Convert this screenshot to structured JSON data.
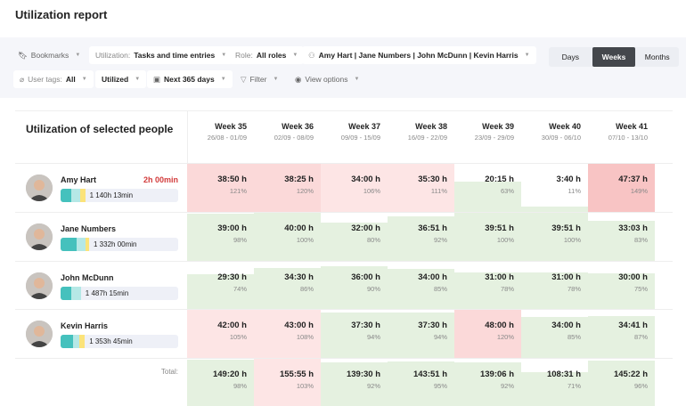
{
  "page_title": "Utilization report",
  "toolbar": {
    "bookmarks": "Bookmarks",
    "utilization_label": "Utilization:",
    "utilization_value": "Tasks and time entries",
    "role_label": "Role:",
    "role_value": "All roles",
    "people": "Amy Hart | Jane Numbers | John McDunn | Kevin Harris",
    "user_tags_label": "User tags:",
    "user_tags_value": "All",
    "utilized": "Utilized",
    "range": "Next 365 days",
    "filter": "Filter",
    "view_options": "View options",
    "periods": [
      "Days",
      "Weeks",
      "Months"
    ],
    "active_period": "Weeks"
  },
  "table": {
    "title": "Utilization of selected people",
    "weeks": [
      {
        "name": "Week 35",
        "dates": "26/08 - 01/09"
      },
      {
        "name": "Week 36",
        "dates": "02/09 - 08/09"
      },
      {
        "name": "Week 37",
        "dates": "09/09 - 15/09"
      },
      {
        "name": "Week 38",
        "dates": "16/09 - 22/09"
      },
      {
        "name": "Week 39",
        "dates": "23/09 - 29/09"
      },
      {
        "name": "Week 40",
        "dates": "30/09 - 06/10"
      },
      {
        "name": "Week 41",
        "dates": "07/10 - 13/10"
      }
    ],
    "people": [
      {
        "name": "Amy Hart",
        "overtime": "2h 00min",
        "total": "1 140h 13min",
        "bar": [
          30,
          25,
          14
        ],
        "cells": [
          {
            "h": "38:50 h",
            "p": 121
          },
          {
            "h": "38:25 h",
            "p": 120
          },
          {
            "h": "34:00 h",
            "p": 106
          },
          {
            "h": "35:30 h",
            "p": 111
          },
          {
            "h": "20:15 h",
            "p": 63
          },
          {
            "h": "3:40 h",
            "p": 11
          },
          {
            "h": "47:37 h",
            "p": 149
          }
        ]
      },
      {
        "name": "Jane Numbers",
        "overtime": "",
        "total": "1 332h 00min",
        "bar": [
          45,
          25,
          10
        ],
        "cells": [
          {
            "h": "39:00 h",
            "p": 98
          },
          {
            "h": "40:00 h",
            "p": 100
          },
          {
            "h": "32:00 h",
            "p": 80
          },
          {
            "h": "36:51 h",
            "p": 92
          },
          {
            "h": "39:51 h",
            "p": 100
          },
          {
            "h": "39:51 h",
            "p": 100
          },
          {
            "h": "33:03 h",
            "p": 83
          }
        ]
      },
      {
        "name": "John McDunn",
        "overtime": "",
        "total": "1 487h 15min",
        "bar": [
          30,
          27,
          0
        ],
        "cells": [
          {
            "h": "29:30 h",
            "p": 74
          },
          {
            "h": "34:30 h",
            "p": 86
          },
          {
            "h": "36:00 h",
            "p": 90
          },
          {
            "h": "34:00 h",
            "p": 85
          },
          {
            "h": "31:00 h",
            "p": 78
          },
          {
            "h": "31:00 h",
            "p": 78
          },
          {
            "h": "30:00 h",
            "p": 75
          }
        ]
      },
      {
        "name": "Kevin Harris",
        "overtime": "",
        "total": "1 353h 45min",
        "bar": [
          35,
          17,
          16
        ],
        "cells": [
          {
            "h": "42:00 h",
            "p": 105
          },
          {
            "h": "43:00 h",
            "p": 108
          },
          {
            "h": "37:30 h",
            "p": 94
          },
          {
            "h": "37:30 h",
            "p": 94
          },
          {
            "h": "48:00 h",
            "p": 120
          },
          {
            "h": "34:00 h",
            "p": 85
          },
          {
            "h": "34:41 h",
            "p": 87
          }
        ]
      }
    ],
    "total_label": "Total:",
    "totals": [
      {
        "h": "149:20 h",
        "p": 98
      },
      {
        "h": "155:55 h",
        "p": 103
      },
      {
        "h": "139:30 h",
        "p": 92
      },
      {
        "h": "143:51 h",
        "p": 95
      },
      {
        "h": "139:06 h",
        "p": 92
      },
      {
        "h": "108:31 h",
        "p": 71
      },
      {
        "h": "145:22 h",
        "p": 96
      }
    ]
  },
  "colors": {
    "under": "#e5f1e0",
    "over_light": "#fde5e5",
    "over": "#fbd9d9",
    "over_strong": "#f8c4c4",
    "bar_done": "#45c1bd",
    "bar_planned": "#b5e8e6",
    "bar_extra": "#fbe37a",
    "overtime": "#d23b3b"
  }
}
